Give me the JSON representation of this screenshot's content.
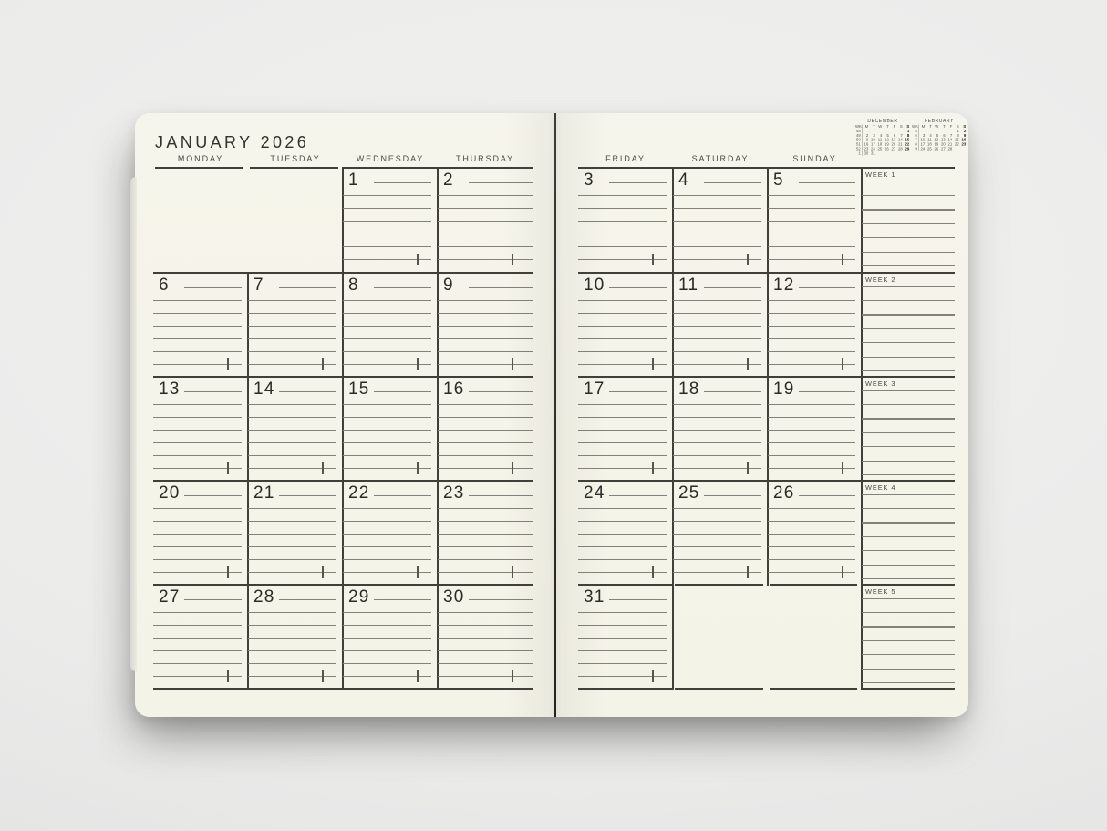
{
  "title": "JANUARY 2026",
  "colors": {
    "background": "#ebebea",
    "paper": "#f5f4e9",
    "border_ink": "#413f3a",
    "ruled_line": "#82817a",
    "number_ink": "#2b2b26"
  },
  "left_page": {
    "day_headers": [
      "MONDAY",
      "TUESDAY",
      "WEDNESDAY",
      "THURSDAY"
    ],
    "weeks": [
      [
        "",
        "",
        "1",
        "2"
      ],
      [
        "6",
        "7",
        "8",
        "9"
      ],
      [
        "13",
        "14",
        "15",
        "16"
      ],
      [
        "20",
        "21",
        "22",
        "23"
      ],
      [
        "27",
        "28",
        "29",
        "30"
      ]
    ]
  },
  "right_page": {
    "day_headers": [
      "FRIDAY",
      "SATURDAY",
      "SUNDAY"
    ],
    "notes_labels": [
      "WEEK 1",
      "WEEK 2",
      "WEEK 3",
      "WEEK 4",
      "WEEK 5"
    ],
    "weeks": [
      [
        "3",
        "4",
        "5"
      ],
      [
        "10",
        "11",
        "12"
      ],
      [
        "17",
        "18",
        "19"
      ],
      [
        "24",
        "25",
        "26"
      ],
      [
        "31",
        "",
        ""
      ]
    ]
  },
  "mini_calendars": [
    {
      "title": "DECEMBER",
      "week_col_header": "WK",
      "day_headers": [
        "M",
        "T",
        "W",
        "T",
        "F",
        "S",
        "S"
      ],
      "weeks": [
        {
          "num": "48",
          "days": [
            "",
            "",
            "",
            "",
            "",
            "",
            "1"
          ]
        },
        {
          "num": "49",
          "days": [
            "2",
            "3",
            "4",
            "5",
            "6",
            "7",
            "8"
          ]
        },
        {
          "num": "50",
          "days": [
            "9",
            "10",
            "11",
            "12",
            "13",
            "14",
            "15"
          ]
        },
        {
          "num": "51",
          "days": [
            "16",
            "17",
            "18",
            "19",
            "20",
            "21",
            "22"
          ]
        },
        {
          "num": "52",
          "days": [
            "23",
            "24",
            "25",
            "26",
            "27",
            "28",
            "29"
          ]
        },
        {
          "num": "1",
          "days": [
            "30",
            "31",
            "",
            "",
            "",
            "",
            ""
          ]
        }
      ]
    },
    {
      "title": "FEBRUARY",
      "week_col_header": "WK",
      "day_headers": [
        "M",
        "T",
        "W",
        "T",
        "F",
        "S",
        "S"
      ],
      "weeks": [
        {
          "num": "5",
          "days": [
            "",
            "",
            "",
            "",
            "",
            "1",
            "2"
          ]
        },
        {
          "num": "6",
          "days": [
            "3",
            "4",
            "5",
            "6",
            "7",
            "8",
            "9"
          ]
        },
        {
          "num": "7",
          "days": [
            "10",
            "11",
            "12",
            "13",
            "14",
            "15",
            "16"
          ]
        },
        {
          "num": "8",
          "days": [
            "17",
            "18",
            "19",
            "20",
            "21",
            "22",
            "23"
          ]
        },
        {
          "num": "9",
          "days": [
            "24",
            "25",
            "26",
            "27",
            "28",
            "",
            ""
          ]
        }
      ]
    }
  ]
}
